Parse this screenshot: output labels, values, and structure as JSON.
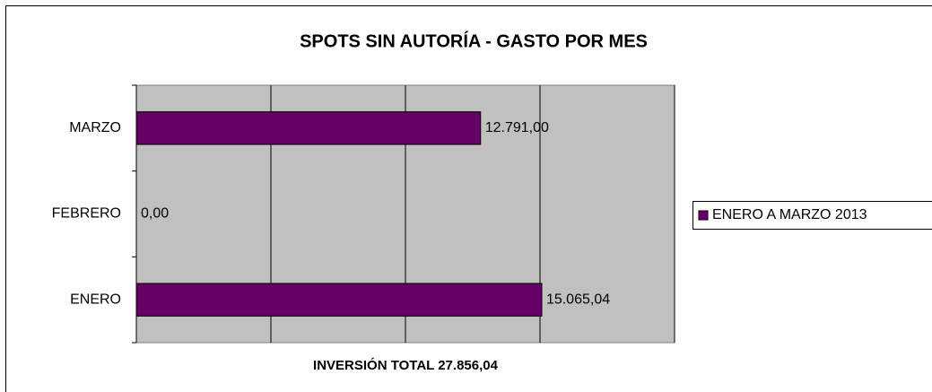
{
  "chart_data": {
    "type": "barh",
    "title": "SPOTS SIN AUTORÍA - GASTO POR MES",
    "categories": [
      "ENERO",
      "FEBRERO",
      "MARZO"
    ],
    "series": [
      {
        "name": "ENERO A MARZO 2013",
        "color": "#660066",
        "values": [
          15065.04,
          0,
          12791
        ],
        "value_labels": [
          "15.065,04",
          "0,00",
          "12.791,00"
        ]
      }
    ],
    "xlabel": "INVERSIÓN TOTAL 27.856,04",
    "xlim": [
      0,
      20000
    ],
    "xticks": [
      0,
      5000,
      10000,
      15000,
      20000
    ],
    "grid": true,
    "legend": "right"
  }
}
